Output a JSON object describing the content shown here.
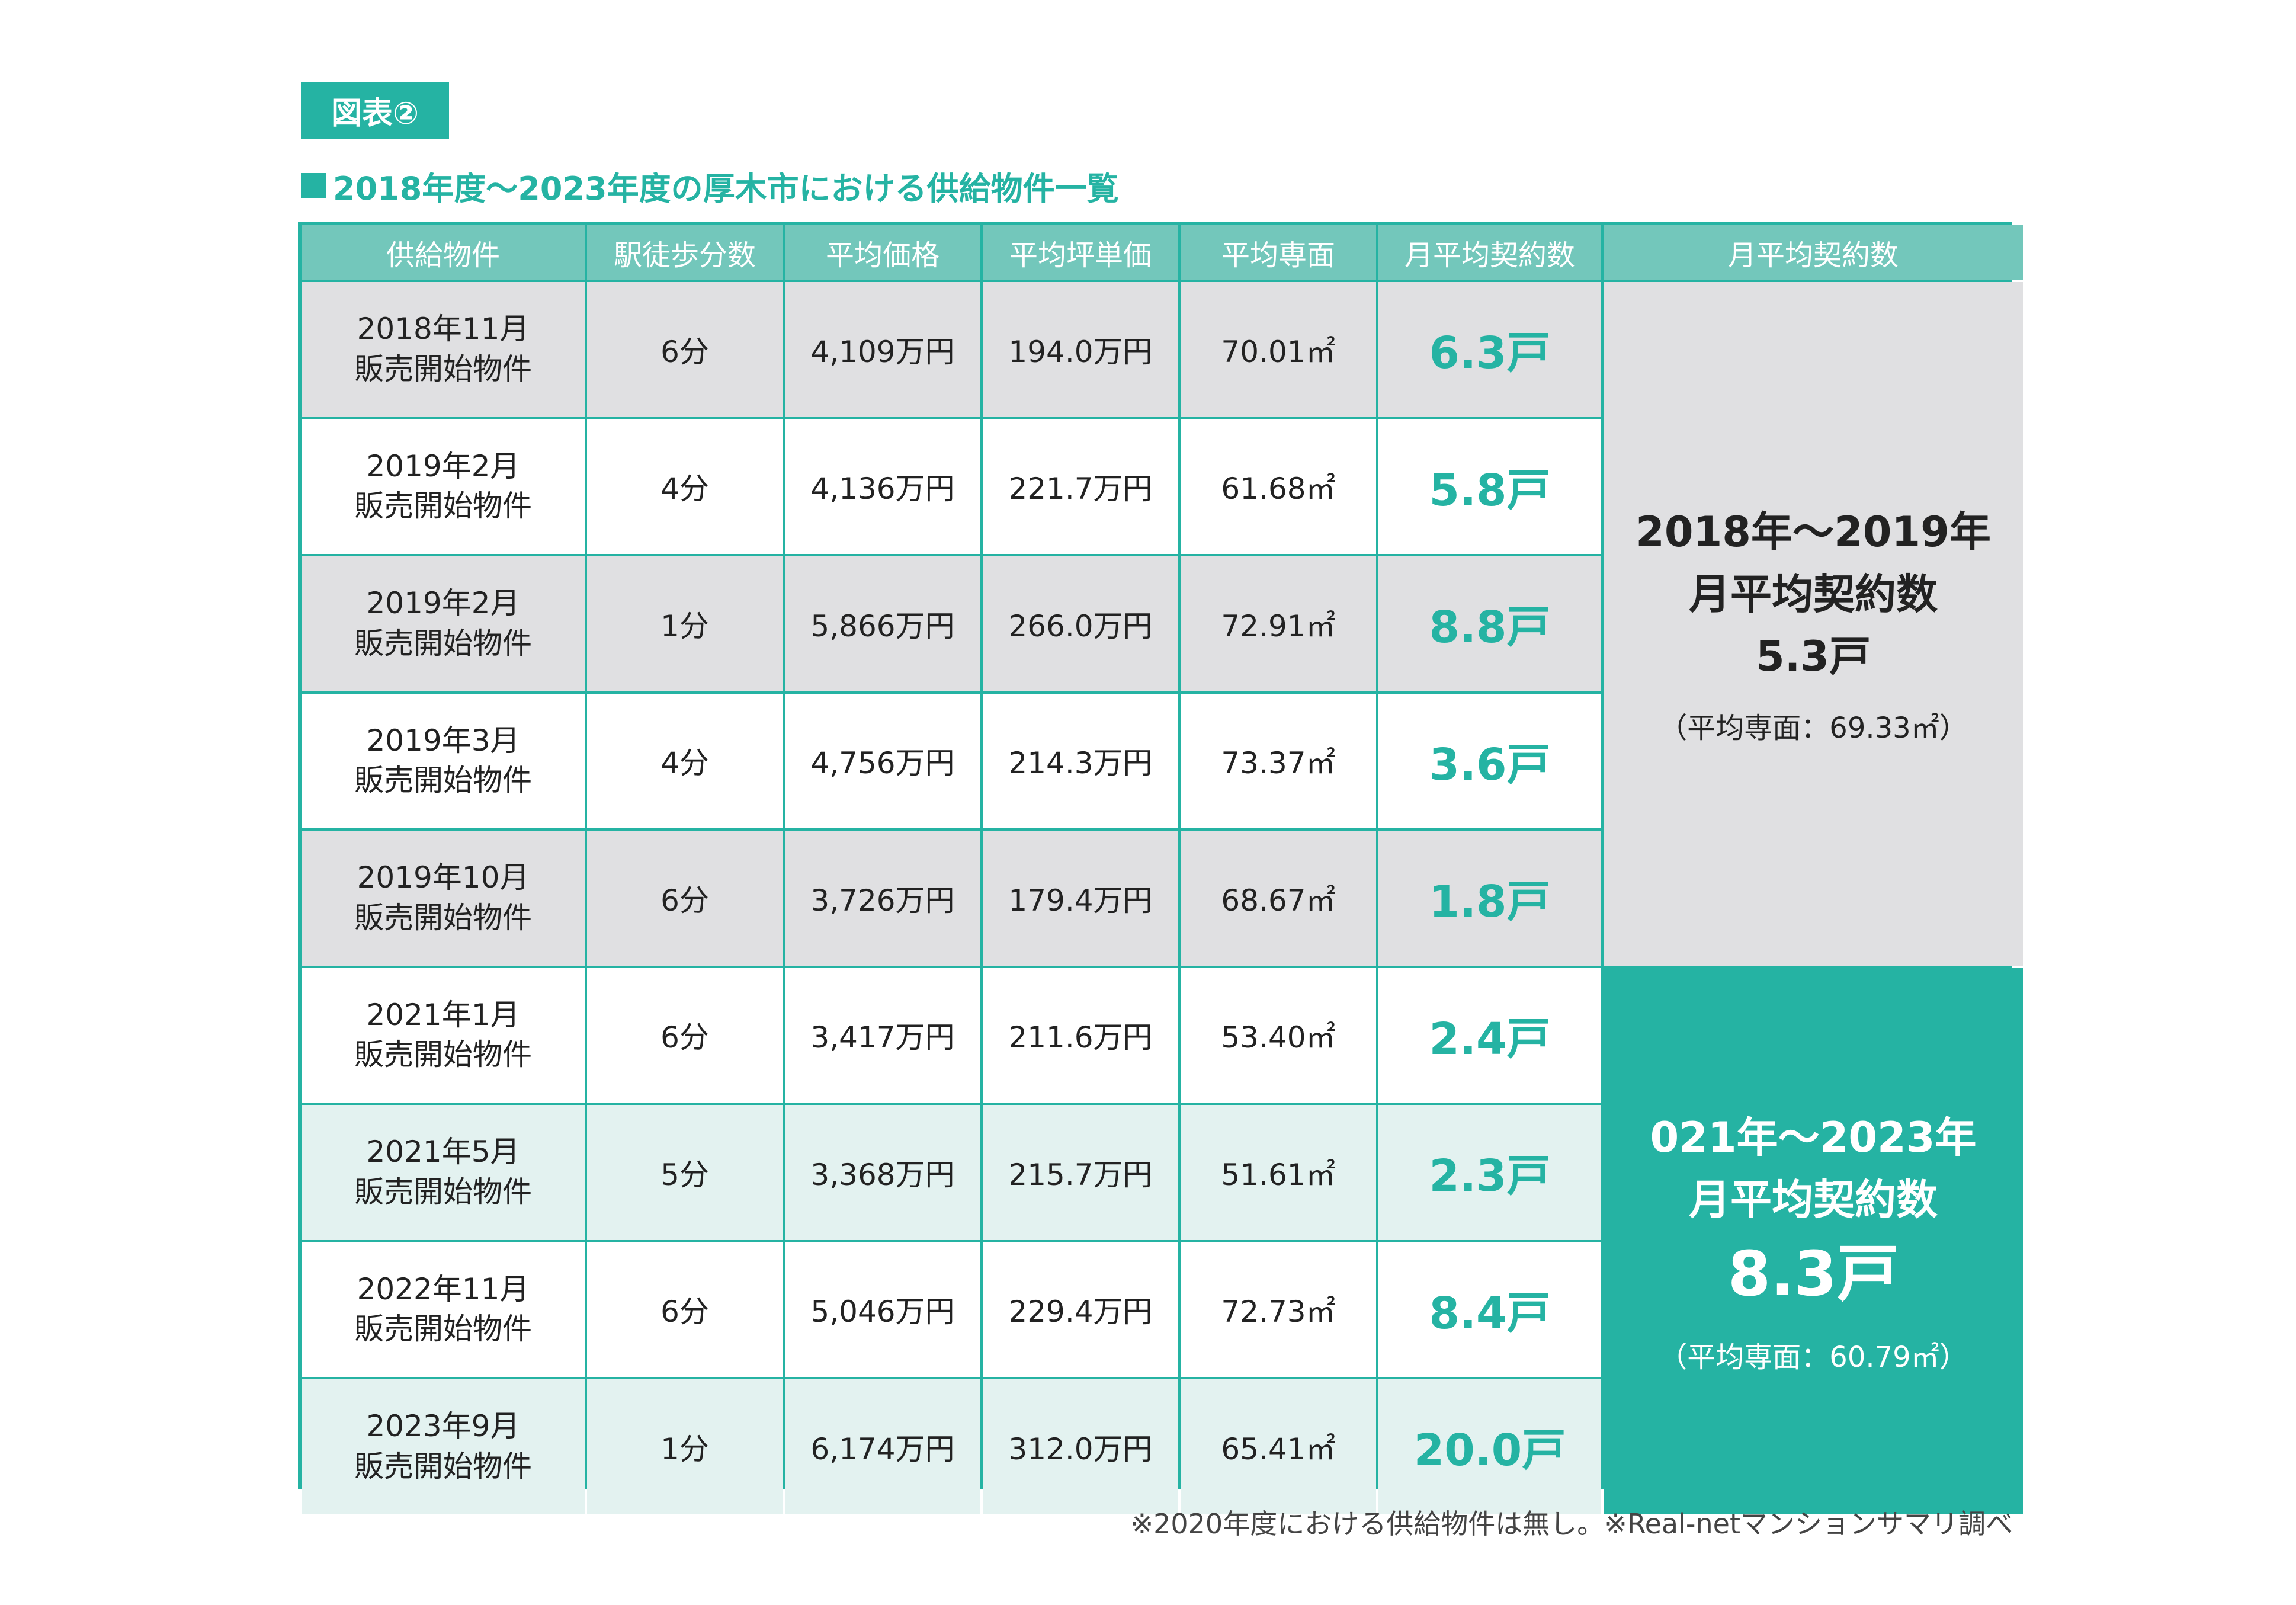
{
  "figure_label": "図表②",
  "title": "2018年度～2023年度の厚木市における供給物件一覧",
  "chart_data": {
    "type": "table",
    "columns": [
      "供給物件",
      "駅徒歩分数",
      "平均価格",
      "平均坪単価",
      "平均専面",
      "月平均契約数",
      "月平均契約数"
    ],
    "rows": [
      {
        "property": [
          "2018年11月",
          "販売開始物件"
        ],
        "walk": "6分",
        "price": "4,109万円",
        "tsubo": "194.0万円",
        "area": "70.01㎡",
        "sales": "6.3戸"
      },
      {
        "property": [
          "2019年2月",
          "販売開始物件"
        ],
        "walk": "4分",
        "price": "4,136万円",
        "tsubo": "221.7万円",
        "area": "61.68㎡",
        "sales": "5.8戸"
      },
      {
        "property": [
          "2019年2月",
          "販売開始物件"
        ],
        "walk": "1分",
        "price": "5,866万円",
        "tsubo": "266.0万円",
        "area": "72.91㎡",
        "sales": "8.8戸"
      },
      {
        "property": [
          "2019年3月",
          "販売開始物件"
        ],
        "walk": "4分",
        "price": "4,756万円",
        "tsubo": "214.3万円",
        "area": "73.37㎡",
        "sales": "3.6戸"
      },
      {
        "property": [
          "2019年10月",
          "販売開始物件"
        ],
        "walk": "6分",
        "price": "3,726万円",
        "tsubo": "179.4万円",
        "area": "68.67㎡",
        "sales": "1.8戸"
      },
      {
        "property": [
          "2021年1月",
          "販売開始物件"
        ],
        "walk": "6分",
        "price": "3,417万円",
        "tsubo": "211.6万円",
        "area": "53.40㎡",
        "sales": "2.4戸"
      },
      {
        "property": [
          "2021年5月",
          "販売開始物件"
        ],
        "walk": "5分",
        "price": "3,368万円",
        "tsubo": "215.7万円",
        "area": "51.61㎡",
        "sales": "2.3戸"
      },
      {
        "property": [
          "2022年11月",
          "販売開始物件"
        ],
        "walk": "6分",
        "price": "5,046万円",
        "tsubo": "229.4万円",
        "area": "72.73㎡",
        "sales": "8.4戸"
      },
      {
        "property": [
          "2023年9月",
          "販売開始物件"
        ],
        "walk": "1分",
        "price": "6,174万円",
        "tsubo": "312.0万円",
        "area": "65.41㎡",
        "sales": "20.0戸"
      }
    ],
    "summaries": [
      {
        "period": "2018年～2019年",
        "label": "月平均契約数",
        "value": "5.3戸",
        "area": "（平均専面：69.33㎡）"
      },
      {
        "period": "021年～2023年",
        "label": "月平均契約数",
        "value": "8.3戸",
        "area": "（平均専面：60.79㎡）"
      }
    ]
  },
  "footnote": "※2020年度における供給物件は無し。※Real-netマンションサマリ調べ",
  "colors": {
    "accent": "#25b3a3",
    "header": "#73c7bb",
    "gray": "#e0e0e2",
    "mint": "#e3f2f0"
  }
}
